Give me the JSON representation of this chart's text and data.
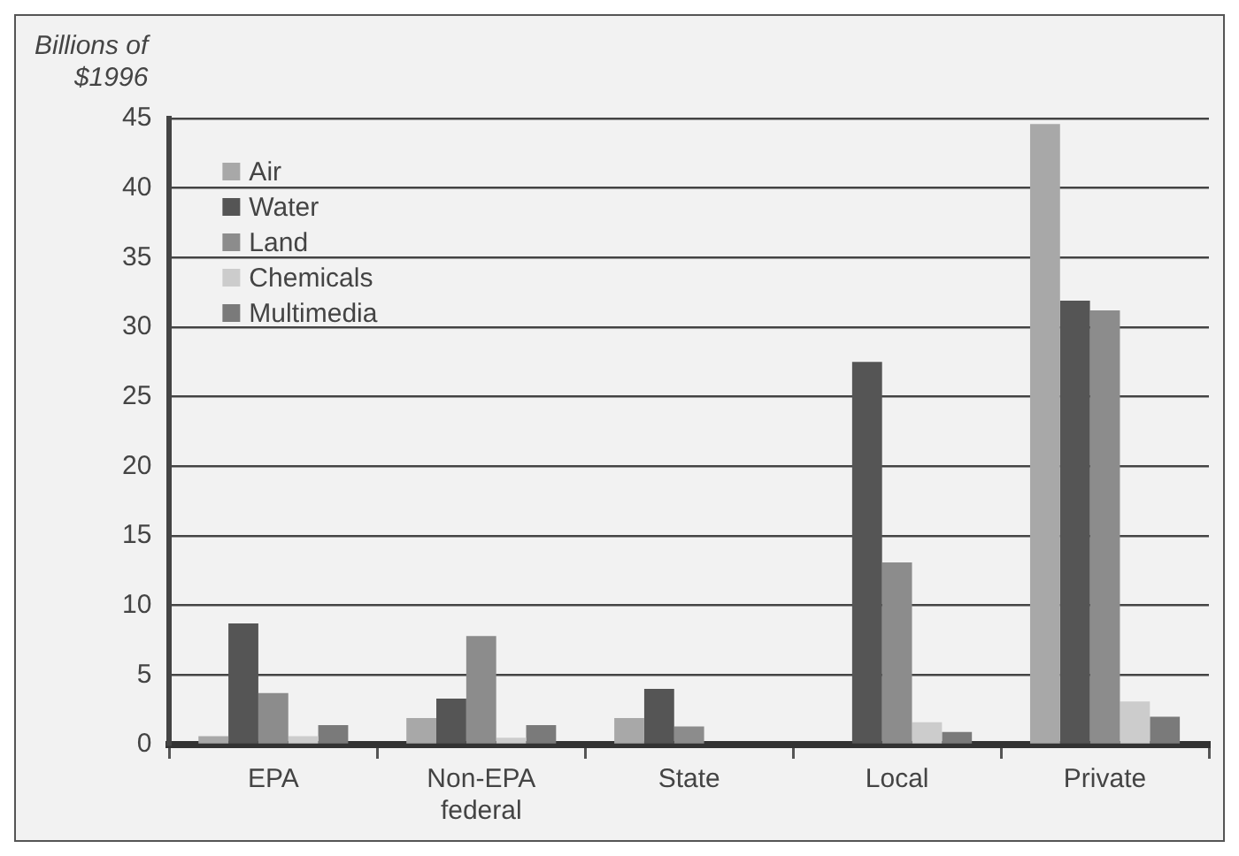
{
  "chart_data": {
    "type": "bar",
    "ylabel": "Billions of\n$1996",
    "categories": [
      "EPA",
      "Non-EPA\nfederal",
      "State",
      "Local",
      "Private"
    ],
    "series": [
      {
        "name": "Air",
        "color": "#a8a8a8",
        "values": [
          0.6,
          1.9,
          1.9,
          0,
          44.6
        ]
      },
      {
        "name": "Water",
        "color": "#555555",
        "values": [
          8.7,
          3.3,
          4.0,
          27.5,
          31.9
        ]
      },
      {
        "name": "Land",
        "color": "#8c8c8c",
        "values": [
          3.7,
          7.8,
          1.3,
          13.1,
          31.2
        ]
      },
      {
        "name": "Chemicals",
        "color": "#cccccc",
        "values": [
          0.6,
          0.5,
          0,
          1.6,
          3.1
        ]
      },
      {
        "name": "Multimedia",
        "color": "#7a7a7a",
        "values": [
          1.4,
          1.4,
          0,
          0.9,
          2.0
        ]
      }
    ],
    "ylim": [
      0,
      45
    ],
    "yticks": [
      0,
      5,
      10,
      15,
      20,
      25,
      30,
      35,
      40,
      45
    ],
    "grid": "y",
    "legend": "top left"
  }
}
